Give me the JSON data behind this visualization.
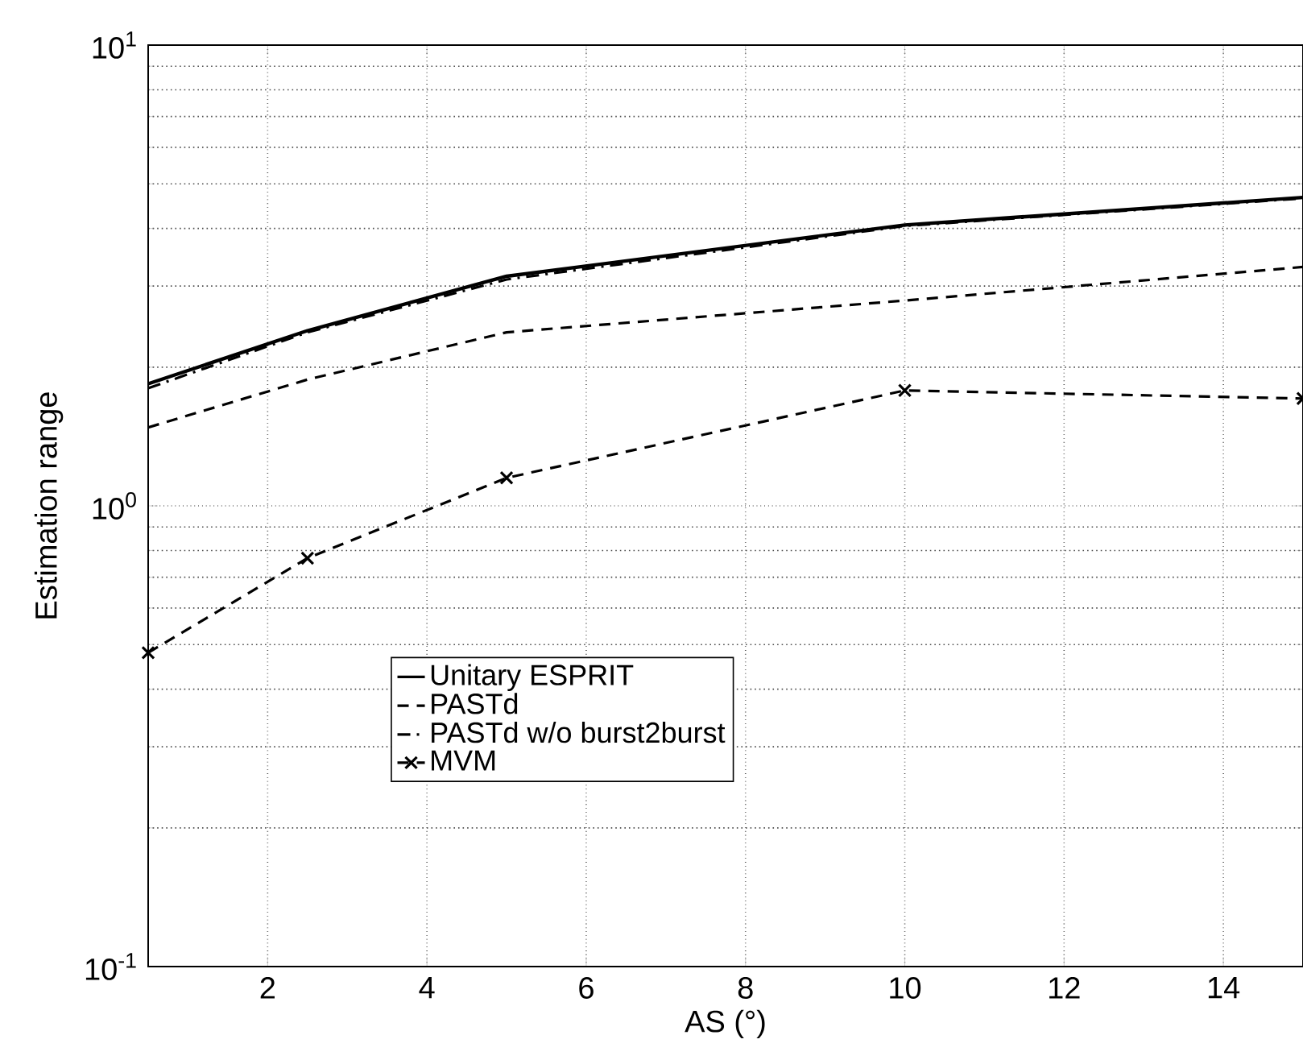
{
  "chart_data": {
    "type": "line",
    "xlabel": "AS (°)",
    "ylabel": "Estimation range",
    "log": "y",
    "grid": true,
    "legend": "bottom left",
    "xlim": [
      0.5,
      15
    ],
    "xticks": [
      2,
      4,
      6,
      8,
      10,
      12,
      14
    ],
    "ylim": [
      0.1,
      10
    ],
    "yticks": [
      {
        "value": 0.1,
        "label": "10$^{-1}$"
      },
      {
        "value": 1,
        "label": "10$^{0}$"
      },
      {
        "value": 10,
        "label": "10$^{1}$"
      }
    ],
    "x": [
      0.5,
      2.5,
      5,
      10,
      15
    ],
    "series": [
      {
        "name": "Unitary ESPRIT",
        "color": "#000000",
        "line_style": "solid",
        "values": [
          1.84,
          2.4,
          3.15,
          4.07,
          4.67
        ]
      },
      {
        "name": "PASTd",
        "color": "#000000",
        "line_style": "dashed",
        "values": [
          1.48,
          1.88,
          2.38,
          2.79,
          3.3
        ]
      },
      {
        "name": "PASTd w/o burst2burst",
        "color": "#000000",
        "line_style": "dashdot",
        "values": [
          1.8,
          2.38,
          3.1,
          4.05,
          4.65
        ]
      },
      {
        "name": "MVM",
        "color": "#000000",
        "line_style": "dashed",
        "marker": "cross",
        "values": [
          0.48,
          0.77,
          1.15,
          1.78,
          1.71
        ]
      }
    ]
  }
}
